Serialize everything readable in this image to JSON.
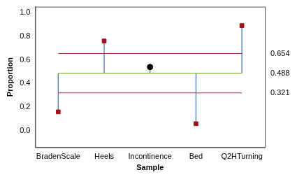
{
  "chart_data": {
    "type": "control",
    "x_label": "Sample",
    "y_label": "Proportion",
    "categories": [
      "BradenScale",
      "Heels",
      "Incontinence",
      "Bed",
      "Q2HTurning"
    ],
    "series": [
      {
        "color": "#a50f15",
        "marker": "square",
        "values": [
          0.16,
          0.76,
          null,
          0.06,
          0.89
        ]
      },
      {
        "color": "#000000",
        "marker": "circle",
        "values": [
          null,
          null,
          0.54,
          null,
          null
        ]
      }
    ],
    "center_line": 0.488,
    "upper_limit": 0.654,
    "lower_limit": 0.321,
    "ylim": [
      -0.14,
      1.05
    ],
    "yticks": [
      {
        "value": 0,
        "label": "0.0"
      },
      {
        "value": 0.2,
        "label": "0.2"
      },
      {
        "value": 0.4,
        "label": "0.4"
      },
      {
        "value": 0.6,
        "label": "0.6"
      },
      {
        "value": 0.8,
        "label": "0.8"
      },
      {
        "value": 1,
        "label": "1.0"
      }
    ],
    "grid": false
  }
}
